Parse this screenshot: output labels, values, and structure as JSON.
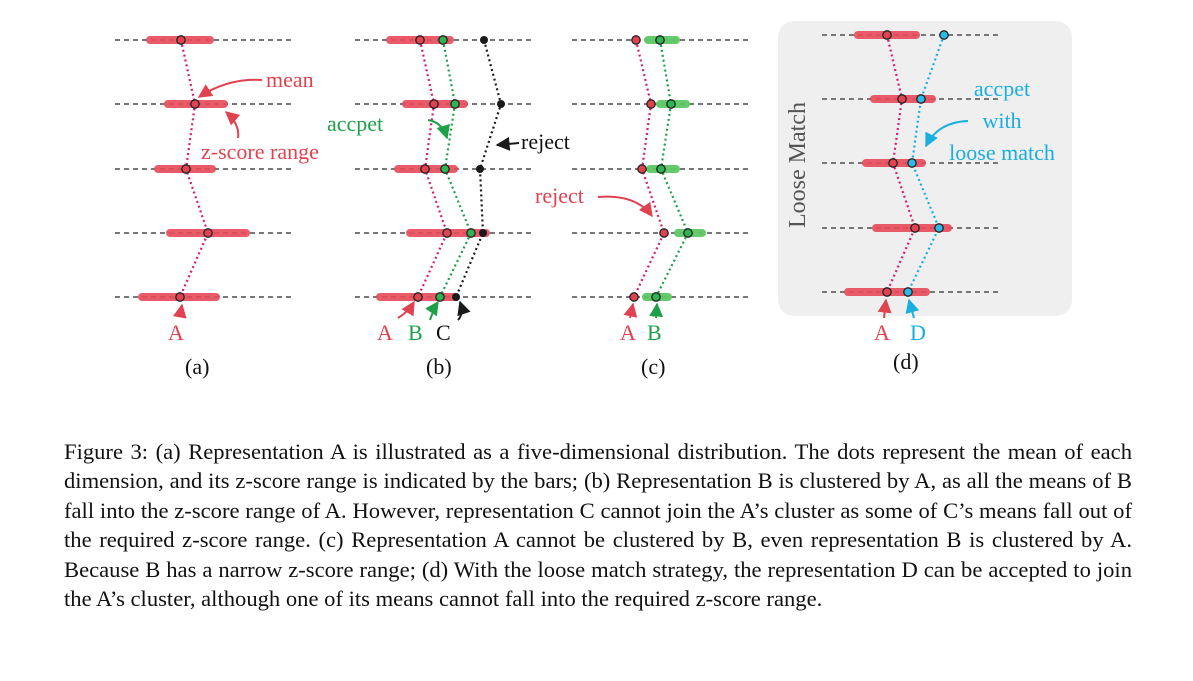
{
  "colors": {
    "red": "#e0424f",
    "red_bar": "#e84a5a",
    "green": "#1ea048",
    "green_bar": "#5cc865",
    "black": "#1a1a1a",
    "blue": "#1aaee0",
    "panel_bg": "#efefef",
    "axis": "#777777"
  },
  "panels": {
    "a": {
      "label": "(a)",
      "reps": [
        "A"
      ],
      "annotations": {
        "mean": "mean",
        "zscore": "z-score range"
      }
    },
    "b": {
      "label": "(b)",
      "reps": [
        "A",
        "B",
        "C"
      ],
      "annotations": {
        "accept": "accpet",
        "reject": "reject"
      }
    },
    "c": {
      "label": "(c)",
      "reps": [
        "A",
        "B"
      ],
      "annotations": {
        "reject": "reject"
      }
    },
    "d": {
      "label": "(d)",
      "reps": [
        "A",
        "D"
      ],
      "annotations": {
        "side_title": "Loose Match",
        "accept_line1": "accpet",
        "accept_line2": "with",
        "accept_line3": "loose match"
      }
    }
  },
  "caption": "Figure 3: (a) Representation A is illustrated as a five-dimensional distribution. The dots represent the mean of each dimension, and its z-score range is indicated by the bars; (b) Representation B is clustered by A, as all the means of B fall into the z-score range of A. However, representation C cannot join the A’s cluster as some of C’s means fall out of the required z-score range. (c) Representation A cannot be clustered by B, even representation B is clustered by A. Because B has a narrow z-score range; (d) With the loose match strategy, the representation D can be accepted to join the A’s cluster, although one of its means cannot fall into the required z-score range."
}
